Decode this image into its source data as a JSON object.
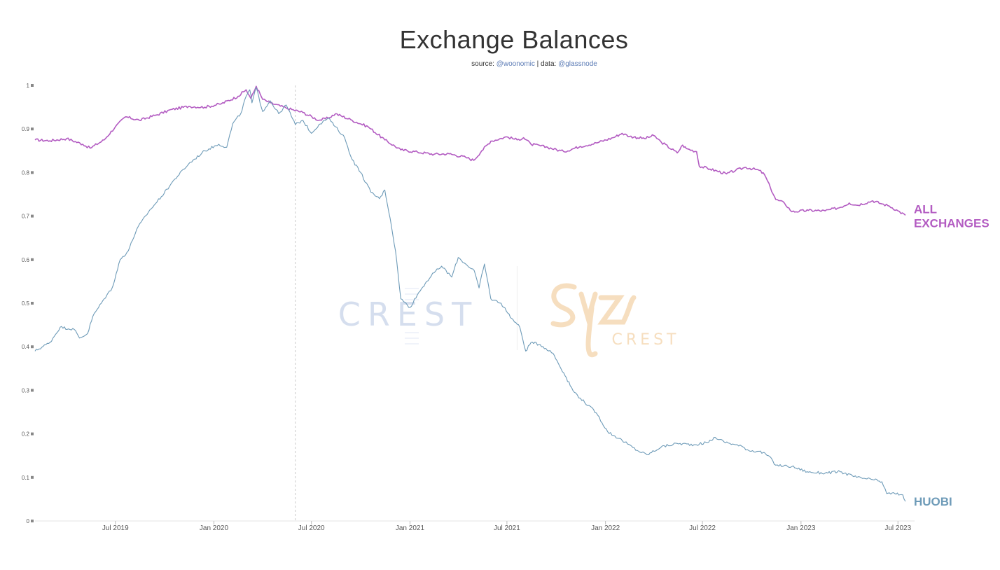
{
  "header": {
    "title": "Exchange Balances",
    "subtitle_prefix": "source: ",
    "subtitle_source": "@woonomic",
    "subtitle_sep": " | data: ",
    "subtitle_data": "@glassnode"
  },
  "watermarks": {
    "left": "CREST",
    "right": "CREST"
  },
  "chart_data": {
    "type": "line",
    "title": "Exchange Balances",
    "xlabel": "",
    "ylabel": "",
    "x_range": [
      "2019-02-01",
      "2023-08-01"
    ],
    "ylim": [
      0,
      1
    ],
    "yticks": [
      "0",
      "0.1",
      "0.2",
      "0.3",
      "0.4",
      "0.5",
      "0.6",
      "0.7",
      "0.8",
      "0.9",
      "1"
    ],
    "xticks": [
      {
        "date": "2019-07-01",
        "label": "Jul 2019"
      },
      {
        "date": "2020-01-01",
        "label": "Jan 2020"
      },
      {
        "date": "2020-07-01",
        "label": "Jul 2020"
      },
      {
        "date": "2021-01-01",
        "label": "Jan 2021"
      },
      {
        "date": "2021-07-01",
        "label": "Jul 2021"
      },
      {
        "date": "2022-01-01",
        "label": "Jan 2022"
      },
      {
        "date": "2022-07-01",
        "label": "Jul 2022"
      },
      {
        "date": "2023-01-01",
        "label": "Jan 2023"
      },
      {
        "date": "2023-07-01",
        "label": "Jul 2023"
      }
    ],
    "grid": false,
    "legend": "inline labels at right end of lines",
    "series": [
      {
        "name": "ALL EXCHANGES",
        "color": "#b35cc2",
        "points": [
          [
            "2019-02-01",
            0.875
          ],
          [
            "2019-03-01",
            0.873
          ],
          [
            "2019-04-01",
            0.878
          ],
          [
            "2019-05-01",
            0.865
          ],
          [
            "2019-05-15",
            0.856
          ],
          [
            "2019-06-10",
            0.875
          ],
          [
            "2019-07-01",
            0.905
          ],
          [
            "2019-07-20",
            0.928
          ],
          [
            "2019-08-15",
            0.92
          ],
          [
            "2019-09-15",
            0.932
          ],
          [
            "2019-10-15",
            0.945
          ],
          [
            "2019-11-15",
            0.952
          ],
          [
            "2019-12-15",
            0.95
          ],
          [
            "2020-01-15",
            0.958
          ],
          [
            "2020-02-15",
            0.975
          ],
          [
            "2020-03-01",
            0.99
          ],
          [
            "2020-03-10",
            0.97
          ],
          [
            "2020-03-20",
            0.998
          ],
          [
            "2020-04-01",
            0.968
          ],
          [
            "2020-04-15",
            0.96
          ],
          [
            "2020-05-15",
            0.948
          ],
          [
            "2020-06-15",
            0.938
          ],
          [
            "2020-07-15",
            0.92
          ],
          [
            "2020-08-01",
            0.925
          ],
          [
            "2020-08-15",
            0.935
          ],
          [
            "2020-09-15",
            0.92
          ],
          [
            "2020-10-15",
            0.905
          ],
          [
            "2020-11-15",
            0.875
          ],
          [
            "2020-12-15",
            0.852
          ],
          [
            "2021-01-15",
            0.847
          ],
          [
            "2021-02-15",
            0.842
          ],
          [
            "2021-03-15",
            0.843
          ],
          [
            "2021-04-15",
            0.835
          ],
          [
            "2021-04-30",
            0.828
          ],
          [
            "2021-05-15",
            0.85
          ],
          [
            "2021-06-01",
            0.872
          ],
          [
            "2021-07-01",
            0.882
          ],
          [
            "2021-07-20",
            0.875
          ],
          [
            "2021-08-01",
            0.88
          ],
          [
            "2021-08-15",
            0.865
          ],
          [
            "2021-09-15",
            0.858
          ],
          [
            "2021-10-15",
            0.848
          ],
          [
            "2021-11-15",
            0.86
          ],
          [
            "2021-12-15",
            0.868
          ],
          [
            "2022-01-15",
            0.88
          ],
          [
            "2022-02-01",
            0.89
          ],
          [
            "2022-02-15",
            0.883
          ],
          [
            "2022-03-15",
            0.878
          ],
          [
            "2022-04-01",
            0.885
          ],
          [
            "2022-04-15",
            0.87
          ],
          [
            "2022-05-15",
            0.845
          ],
          [
            "2022-05-25",
            0.863
          ],
          [
            "2022-06-01",
            0.855
          ],
          [
            "2022-06-20",
            0.848
          ],
          [
            "2022-06-25",
            0.815
          ],
          [
            "2022-07-15",
            0.808
          ],
          [
            "2022-08-15",
            0.797
          ],
          [
            "2022-09-01",
            0.805
          ],
          [
            "2022-09-20",
            0.812
          ],
          [
            "2022-10-15",
            0.805
          ],
          [
            "2022-10-25",
            0.795
          ],
          [
            "2022-11-05",
            0.765
          ],
          [
            "2022-11-15",
            0.738
          ],
          [
            "2022-12-01",
            0.73
          ],
          [
            "2022-12-15",
            0.71
          ],
          [
            "2023-01-15",
            0.713
          ],
          [
            "2023-02-15",
            0.712
          ],
          [
            "2023-03-15",
            0.72
          ],
          [
            "2023-04-01",
            0.73
          ],
          [
            "2023-04-15",
            0.725
          ],
          [
            "2023-05-15",
            0.735
          ],
          [
            "2023-06-01",
            0.728
          ],
          [
            "2023-06-15",
            0.723
          ],
          [
            "2023-07-01",
            0.712
          ],
          [
            "2023-07-15",
            0.702
          ]
        ]
      },
      {
        "name": "HUOBI",
        "color": "#6e9bb8",
        "points": [
          [
            "2019-02-01",
            0.39
          ],
          [
            "2019-03-01",
            0.41
          ],
          [
            "2019-03-20",
            0.445
          ],
          [
            "2019-04-15",
            0.44
          ],
          [
            "2019-04-25",
            0.42
          ],
          [
            "2019-05-10",
            0.43
          ],
          [
            "2019-05-20",
            0.47
          ],
          [
            "2019-06-10",
            0.51
          ],
          [
            "2019-06-25",
            0.535
          ],
          [
            "2019-07-10",
            0.6
          ],
          [
            "2019-07-25",
            0.62
          ],
          [
            "2019-08-10",
            0.67
          ],
          [
            "2019-09-01",
            0.71
          ],
          [
            "2019-09-25",
            0.745
          ],
          [
            "2019-10-20",
            0.785
          ],
          [
            "2019-11-15",
            0.82
          ],
          [
            "2019-12-15",
            0.85
          ],
          [
            "2020-01-10",
            0.865
          ],
          [
            "2020-01-25",
            0.858
          ],
          [
            "2020-02-05",
            0.912
          ],
          [
            "2020-02-20",
            0.935
          ],
          [
            "2020-03-01",
            0.975
          ],
          [
            "2020-03-08",
            0.99
          ],
          [
            "2020-03-12",
            0.96
          ],
          [
            "2020-03-20",
            0.995
          ],
          [
            "2020-04-01",
            0.94
          ],
          [
            "2020-04-15",
            0.965
          ],
          [
            "2020-05-01",
            0.935
          ],
          [
            "2020-05-15",
            0.955
          ],
          [
            "2020-06-01",
            0.91
          ],
          [
            "2020-06-15",
            0.92
          ],
          [
            "2020-07-01",
            0.89
          ],
          [
            "2020-07-15",
            0.91
          ],
          [
            "2020-08-01",
            0.925
          ],
          [
            "2020-08-15",
            0.905
          ],
          [
            "2020-09-01",
            0.88
          ],
          [
            "2020-09-15",
            0.83
          ],
          [
            "2020-10-01",
            0.8
          ],
          [
            "2020-10-20",
            0.755
          ],
          [
            "2020-11-05",
            0.74
          ],
          [
            "2020-11-15",
            0.76
          ],
          [
            "2020-11-25",
            0.695
          ],
          [
            "2020-12-05",
            0.62
          ],
          [
            "2020-12-15",
            0.51
          ],
          [
            "2021-01-01",
            0.49
          ],
          [
            "2021-01-15",
            0.52
          ],
          [
            "2021-02-01",
            0.55
          ],
          [
            "2021-02-15",
            0.57
          ],
          [
            "2021-03-01",
            0.585
          ],
          [
            "2021-03-20",
            0.56
          ],
          [
            "2021-04-01",
            0.605
          ],
          [
            "2021-04-15",
            0.59
          ],
          [
            "2021-05-01",
            0.575
          ],
          [
            "2021-05-10",
            0.535
          ],
          [
            "2021-05-20",
            0.59
          ],
          [
            "2021-06-01",
            0.51
          ],
          [
            "2021-06-20",
            0.5
          ],
          [
            "2021-07-10",
            0.465
          ],
          [
            "2021-07-25",
            0.445
          ],
          [
            "2021-08-05",
            0.39
          ],
          [
            "2021-08-15",
            0.41
          ],
          [
            "2021-09-01",
            0.405
          ],
          [
            "2021-09-25",
            0.385
          ],
          [
            "2021-10-15",
            0.34
          ],
          [
            "2021-11-01",
            0.3
          ],
          [
            "2021-11-15",
            0.282
          ],
          [
            "2021-12-15",
            0.248
          ],
          [
            "2022-01-05",
            0.205
          ],
          [
            "2022-02-01",
            0.185
          ],
          [
            "2022-03-01",
            0.162
          ],
          [
            "2022-03-20",
            0.152
          ],
          [
            "2022-04-15",
            0.17
          ],
          [
            "2022-05-15",
            0.178
          ],
          [
            "2022-06-15",
            0.175
          ],
          [
            "2022-07-10",
            0.18
          ],
          [
            "2022-07-25",
            0.192
          ],
          [
            "2022-08-10",
            0.182
          ],
          [
            "2022-09-01",
            0.175
          ],
          [
            "2022-09-15",
            0.17
          ],
          [
            "2022-09-25",
            0.162
          ],
          [
            "2022-10-15",
            0.16
          ],
          [
            "2022-11-01",
            0.15
          ],
          [
            "2022-11-15",
            0.128
          ],
          [
            "2022-12-15",
            0.125
          ],
          [
            "2023-01-15",
            0.112
          ],
          [
            "2023-02-15",
            0.11
          ],
          [
            "2023-03-15",
            0.113
          ],
          [
            "2023-04-15",
            0.1
          ],
          [
            "2023-05-15",
            0.095
          ],
          [
            "2023-06-01",
            0.09
          ],
          [
            "2023-06-10",
            0.063
          ],
          [
            "2023-06-25",
            0.063
          ],
          [
            "2023-07-10",
            0.06
          ],
          [
            "2023-07-15",
            0.045
          ]
        ]
      }
    ]
  }
}
